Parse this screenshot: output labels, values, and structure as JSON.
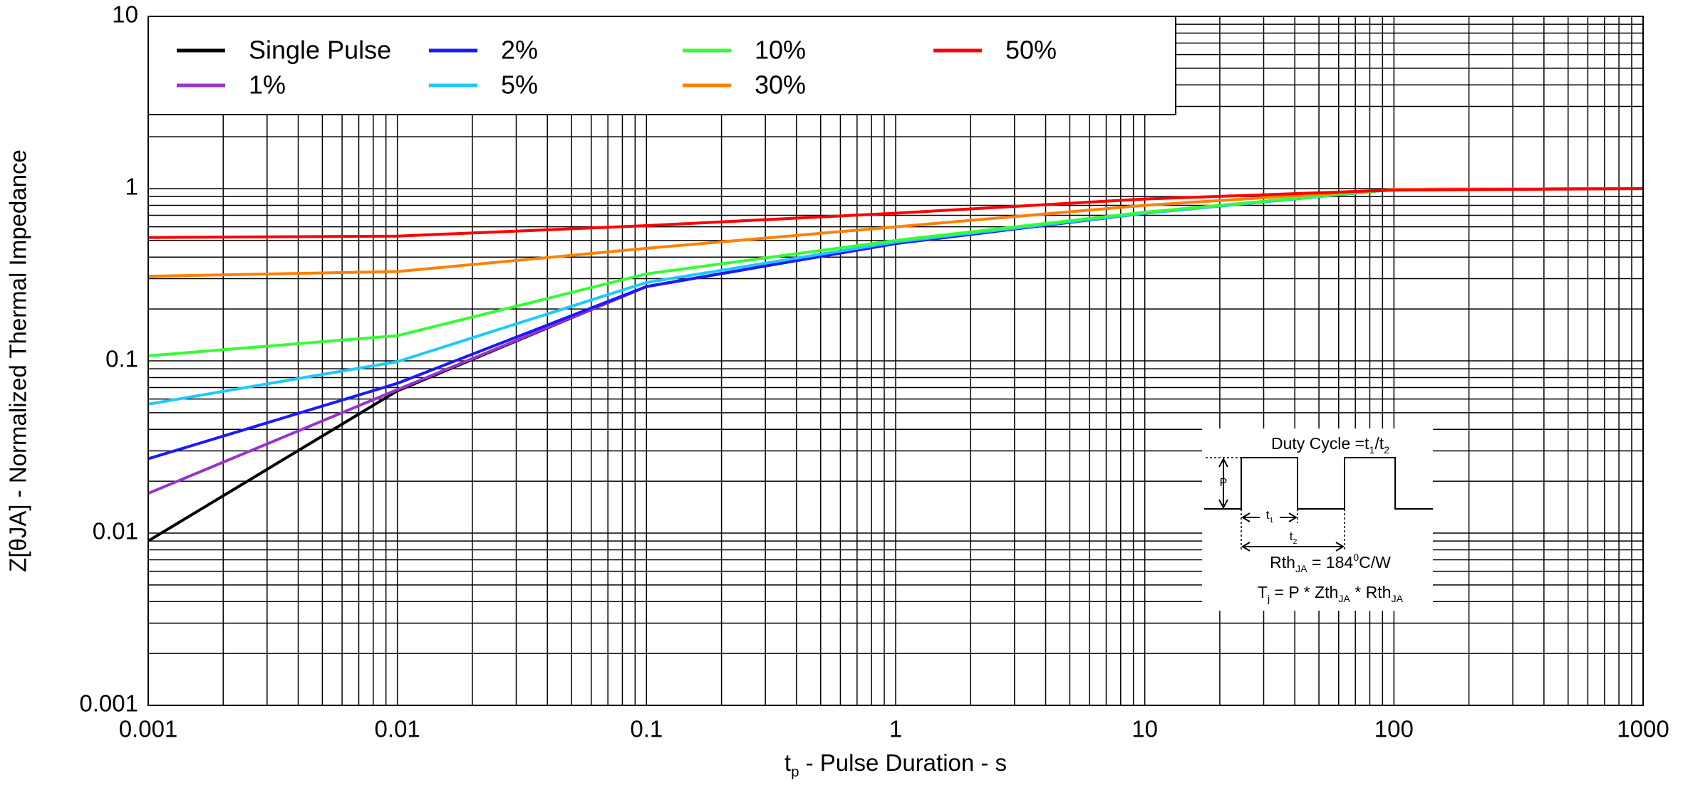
{
  "chart_data": {
    "type": "line",
    "y_label": "Z[θJA] - Normalized Thermal Impedance",
    "x_label": [
      {
        "t": "t"
      },
      {
        "t": "p",
        "sub": true
      },
      {
        "t": " - Pulse Duration - s"
      }
    ],
    "x": [
      0.001,
      0.01,
      0.1,
      1,
      10,
      100,
      1000
    ],
    "series": [
      {
        "name": "Single Pulse",
        "color": "#000000",
        "values": [
          0.009,
          0.067,
          0.27,
          0.48,
          0.72,
          0.99,
          1.0
        ]
      },
      {
        "name": "1%",
        "color": "#9933cc",
        "values": [
          0.017,
          0.068,
          0.27,
          0.48,
          0.72,
          0.99,
          1.0
        ]
      },
      {
        "name": "2%",
        "color": "#1a1aff",
        "values": [
          0.027,
          0.074,
          0.27,
          0.48,
          0.72,
          0.99,
          1.0
        ]
      },
      {
        "name": "5%",
        "color": "#1ec8ff",
        "values": [
          0.056,
          0.099,
          0.285,
          0.49,
          0.72,
          0.99,
          1.0
        ]
      },
      {
        "name": "10%",
        "color": "#33ff33",
        "values": [
          0.107,
          0.14,
          0.32,
          0.5,
          0.73,
          0.99,
          1.0
        ]
      },
      {
        "name": "30%",
        "color": "#ff8000",
        "values": [
          0.31,
          0.33,
          0.45,
          0.6,
          0.8,
          0.99,
          1.0
        ]
      },
      {
        "name": "50%",
        "color": "#ff0000",
        "values": [
          0.52,
          0.53,
          0.61,
          0.72,
          0.87,
          0.98,
          1.0
        ]
      }
    ],
    "xlim": [
      0.001,
      1000
    ],
    "ylim": [
      0.001,
      10
    ],
    "xticks": [
      0.001,
      0.01,
      0.1,
      1,
      10,
      100,
      1000
    ],
    "yticks": [
      0.001,
      0.01,
      0.1,
      1,
      10
    ],
    "x_log": true,
    "y_log": true,
    "grid": true,
    "minor_grid": true,
    "legend": "upper left",
    "inset": {
      "duty_cycle": [
        {
          "t": "Duty Cycle =t"
        },
        {
          "t": "1",
          "sub": true
        },
        {
          "t": "/t"
        },
        {
          "t": "2",
          "sub": true
        }
      ],
      "p": "P",
      "t1": [
        {
          "t": "t"
        },
        {
          "t": "1",
          "sub": true
        }
      ],
      "t2": [
        {
          "t": "t"
        },
        {
          "t": "2",
          "sub": true
        }
      ],
      "rth": [
        {
          "t": "Rth"
        },
        {
          "t": "JA",
          "sub": true
        },
        {
          "t": " = 184"
        },
        {
          "t": "0",
          "sup": true
        },
        {
          "t": "C/W"
        }
      ],
      "tj": [
        {
          "t": "T"
        },
        {
          "t": "j",
          "sub": true
        },
        {
          "t": " = P * Zth"
        },
        {
          "t": "JA",
          "sub": true
        },
        {
          "t": " * Rth"
        },
        {
          "t": "JA",
          "sub": true
        }
      ]
    }
  }
}
